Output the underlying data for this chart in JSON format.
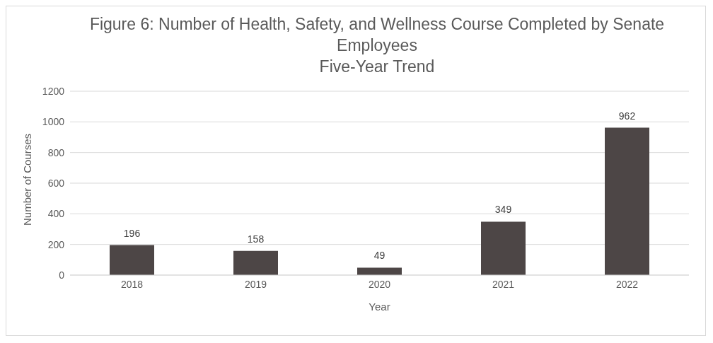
{
  "chart_data": {
    "type": "bar",
    "title": "Figure 6: Number of Health, Safety, and Wellness Course Completed by Senate Employees",
    "subtitle": "Five-Year Trend",
    "xlabel": "Year",
    "ylabel": "Number of Courses",
    "categories": [
      "2018",
      "2019",
      "2020",
      "2021",
      "2022"
    ],
    "values": [
      196,
      158,
      49,
      349,
      962
    ],
    "color": "#4d4646",
    "ylim": [
      0,
      1200
    ],
    "yticks": [
      0,
      200,
      400,
      600,
      800,
      1000,
      1200
    ],
    "grid": "y",
    "data_labels": true,
    "legend": false
  }
}
